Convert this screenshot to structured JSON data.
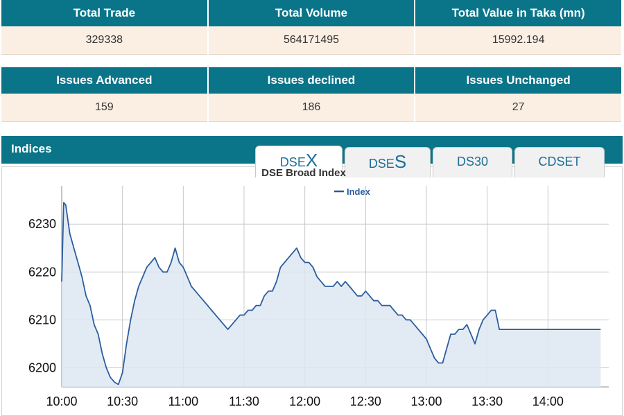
{
  "summary1": {
    "headers": [
      "Total Trade",
      "Total Volume",
      "Total Value in Taka (mn)"
    ],
    "values": [
      "329338",
      "564171495",
      "15992.194"
    ]
  },
  "summary2": {
    "headers": [
      "Issues Advanced",
      "Issues declined",
      "Issues Unchanged"
    ],
    "values": [
      "159",
      "186",
      "27"
    ]
  },
  "indices": {
    "title": "Indices",
    "tabs": [
      {
        "prefix": "DSE",
        "suffix": "X",
        "active": true
      },
      {
        "prefix": "DSE",
        "suffix": "S",
        "active": false
      },
      {
        "prefix": "DS30",
        "suffix": "",
        "active": false
      },
      {
        "prefix": "CDSET",
        "suffix": "",
        "active": false
      }
    ]
  },
  "colors": {
    "header_bg": "#0a7489",
    "cell_bg": "#fbefe3",
    "line": "#2b5d9e",
    "fill": "#dde7f1"
  },
  "chart_data": {
    "type": "area",
    "title": "DSE Broad Index",
    "legend": "Index",
    "legend_position": "top-center",
    "grid": true,
    "ylim": [
      6196,
      6238
    ],
    "yticks": [
      6200,
      6210,
      6220,
      6230
    ],
    "xticks": [
      "10:00",
      "10:30",
      "11:00",
      "11:30",
      "12:00",
      "12:30",
      "13:00",
      "13:30",
      "14:00"
    ],
    "x_minutes": [
      0,
      1,
      2,
      4,
      6,
      8,
      10,
      12,
      14,
      16,
      18,
      20,
      22,
      24,
      26,
      28,
      30,
      32,
      34,
      36,
      38,
      40,
      42,
      44,
      46,
      48,
      50,
      52,
      54,
      56,
      58,
      60,
      62,
      64,
      66,
      68,
      70,
      72,
      74,
      76,
      78,
      80,
      82,
      84,
      86,
      88,
      90,
      92,
      94,
      96,
      98,
      100,
      102,
      104,
      106,
      108,
      110,
      112,
      114,
      116,
      118,
      120,
      122,
      124,
      126,
      128,
      130,
      132,
      134,
      136,
      138,
      140,
      142,
      144,
      146,
      148,
      150,
      152,
      154,
      156,
      158,
      160,
      162,
      164,
      166,
      168,
      170,
      172,
      174,
      176,
      178,
      180,
      182,
      184,
      186,
      188,
      190,
      192,
      194,
      196,
      198,
      200,
      202,
      204,
      206,
      208,
      210,
      212,
      214,
      216,
      218,
      220,
      222,
      224,
      226,
      228,
      230,
      232,
      234,
      236,
      238,
      240,
      242,
      244,
      246,
      248,
      250,
      254,
      258,
      262,
      266
    ],
    "values": [
      6218,
      6234.5,
      6234,
      6228,
      6225,
      6222,
      6219,
      6215,
      6213,
      6209,
      6207,
      6203,
      6200,
      6198,
      6197,
      6196.5,
      6199,
      6205,
      6210,
      6214,
      6217,
      6219,
      6221,
      6222,
      6223,
      6221,
      6220,
      6220,
      6222,
      6225,
      6222,
      6221,
      6219,
      6217,
      6216,
      6215,
      6214,
      6213,
      6212,
      6211,
      6210,
      6209,
      6208,
      6209,
      6210,
      6211,
      6211,
      6212,
      6212,
      6213,
      6213,
      6215,
      6216,
      6216,
      6218,
      6221,
      6222,
      6223,
      6224,
      6225,
      6223,
      6222,
      6222,
      6221,
      6219,
      6218,
      6217,
      6217,
      6217,
      6218,
      6217,
      6218,
      6217,
      6216,
      6215,
      6215,
      6216,
      6215,
      6214,
      6214,
      6213,
      6213,
      6213,
      6212,
      6211,
      6211,
      6210,
      6210,
      6209,
      6208,
      6207,
      6206,
      6204,
      6202,
      6201,
      6201,
      6204,
      6207,
      6207,
      6208,
      6208,
      6209,
      6207,
      6205,
      6208,
      6210,
      6211,
      6212,
      6212,
      6208,
      6208,
      6208,
      6208,
      6208,
      6208,
      6208,
      6208,
      6208,
      6208,
      6208,
      6208,
      6208,
      6208,
      6208,
      6208,
      6208,
      6208,
      6208,
      6208,
      6208,
      6208
    ]
  }
}
